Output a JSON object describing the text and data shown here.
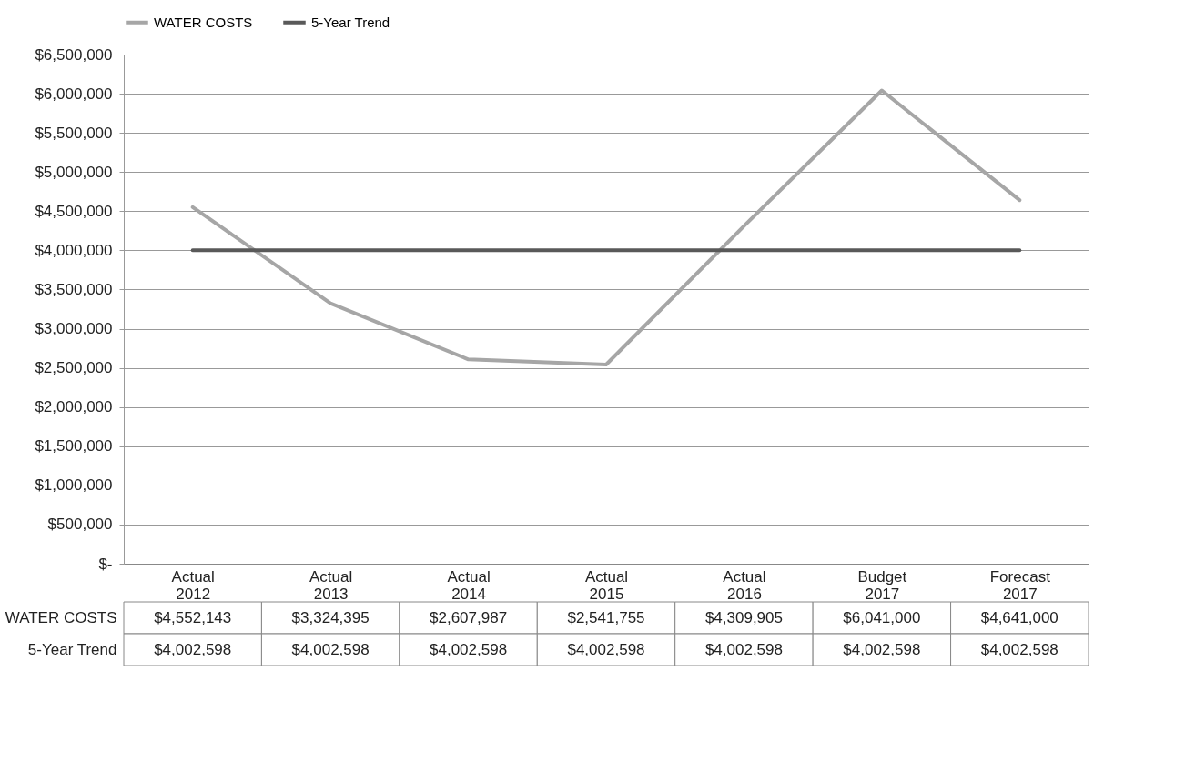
{
  "chart_data": {
    "type": "line",
    "categories": [
      "Actual 2012",
      "Actual 2013",
      "Actual 2014",
      "Actual 2015",
      "Actual 2016",
      "Budget 2017",
      "Forecast 2017"
    ],
    "series": [
      {
        "name": "WATER COSTS",
        "color": "#a6a6a6",
        "values": [
          4552143,
          3324395,
          2607987,
          2541755,
          4309905,
          6041000,
          4641000
        ],
        "value_labels": [
          "$4,552,143",
          "$3,324,395",
          "$2,607,987",
          "$2,541,755",
          "$4,309,905",
          "$6,041,000",
          "$4,641,000"
        ]
      },
      {
        "name": "5-Year Trend",
        "color": "#595959",
        "values": [
          4002598,
          4002598,
          4002598,
          4002598,
          4002598,
          4002598,
          4002598
        ],
        "value_labels": [
          "$4,002,598",
          "$4,002,598",
          "$4,002,598",
          "$4,002,598",
          "$4,002,598",
          "$4,002,598",
          "$4,002,598"
        ]
      }
    ],
    "ylim": [
      0,
      6500000
    ],
    "yticks": [
      {
        "value": 0,
        "label": "$-"
      },
      {
        "value": 500000,
        "label": "$500,000"
      },
      {
        "value": 1000000,
        "label": "$1,000,000"
      },
      {
        "value": 1500000,
        "label": "$1,500,000"
      },
      {
        "value": 2000000,
        "label": "$2,000,000"
      },
      {
        "value": 2500000,
        "label": "$2,500,000"
      },
      {
        "value": 3000000,
        "label": "$3,000,000"
      },
      {
        "value": 3500000,
        "label": "$3,500,000"
      },
      {
        "value": 4000000,
        "label": "$4,000,000"
      },
      {
        "value": 4500000,
        "label": "$4,500,000"
      },
      {
        "value": 5000000,
        "label": "$5,000,000"
      },
      {
        "value": 5500000,
        "label": "$5,500,000"
      },
      {
        "value": 6000000,
        "label": "$6,000,000"
      },
      {
        "value": 6500000,
        "label": "$6,500,000"
      }
    ],
    "grid": "y",
    "legend": "top",
    "marker": "none",
    "line_style": "solid"
  }
}
